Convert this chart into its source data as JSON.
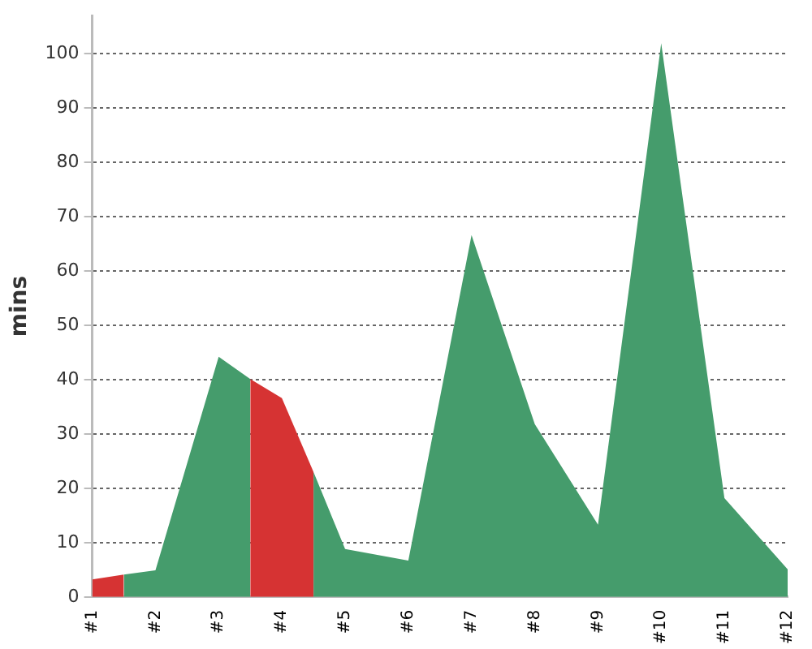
{
  "chart_data": {
    "type": "area",
    "ylabel": "mins",
    "ylim": [
      0,
      107
    ],
    "yticks": [
      0,
      10,
      20,
      30,
      40,
      50,
      60,
      70,
      80,
      90,
      100
    ],
    "xlim": [
      1,
      12
    ],
    "xticks": [
      {
        "value": 1,
        "label": "#1"
      },
      {
        "value": 2,
        "label": "#2"
      },
      {
        "value": 3,
        "label": "#3"
      },
      {
        "value": 4,
        "label": "#4"
      },
      {
        "value": 5,
        "label": "#5"
      },
      {
        "value": 6,
        "label": "#6"
      },
      {
        "value": 7,
        "label": "#7"
      },
      {
        "value": 8,
        "label": "#8"
      },
      {
        "value": 9,
        "label": "#9"
      },
      {
        "value": 10,
        "label": "#10"
      },
      {
        "value": 11,
        "label": "#11"
      },
      {
        "value": 12,
        "label": "#12"
      }
    ],
    "grid": "y",
    "legend": false,
    "line_style": "dashed",
    "series": [
      {
        "color": "#d63333",
        "x": [
          1,
          1.5
        ],
        "values": [
          3.2,
          4.1
        ]
      },
      {
        "color": "#459c6c",
        "x": [
          1.5,
          2,
          3,
          3.5
        ],
        "values": [
          4.1,
          4.9,
          44.2,
          40.1
        ]
      },
      {
        "color": "#d63333",
        "x": [
          3.5,
          4,
          4.5
        ],
        "values": [
          40.1,
          36.6,
          23
        ]
      },
      {
        "color": "#459c6c",
        "x": [
          4.5,
          5,
          6,
          7,
          8,
          9,
          10,
          11,
          12
        ],
        "values": [
          23,
          8.8,
          6.7,
          66.6,
          31.8,
          13.3,
          101.9,
          18.2,
          5.1
        ]
      }
    ]
  }
}
